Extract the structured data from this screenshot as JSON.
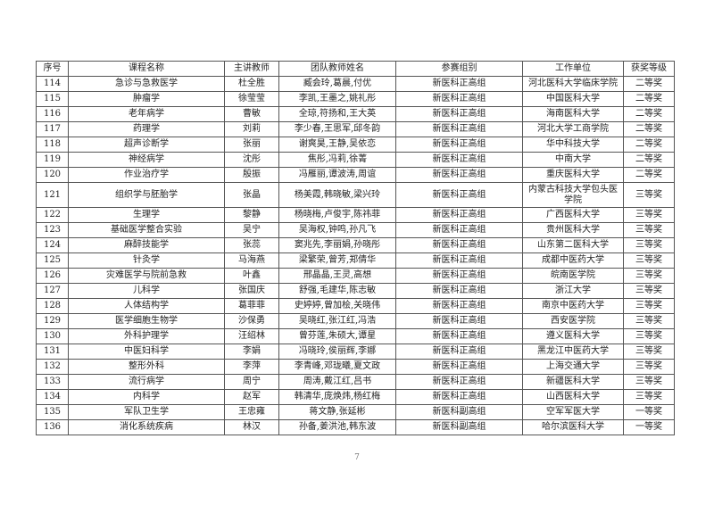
{
  "headers": [
    "序号",
    "课程名称",
    "主讲教师",
    "团队教师姓名",
    "参赛组别",
    "工作单位",
    "获奖等级"
  ],
  "rows": [
    [
      "114",
      "急诊与急救医学",
      "杜全胜",
      "臧会玲,葛晨,付优",
      "新医科正高组",
      "河北医科大学临床学院",
      "二等奖"
    ],
    [
      "115",
      "肿瘤学",
      "徐莹莹",
      "李凯,王墨之,姚礼彤",
      "新医科正高组",
      "中国医科大学",
      "二等奖"
    ],
    [
      "116",
      "老年病学",
      "曹敏",
      "全琼,符扬和,王大英",
      "新医科正高组",
      "海南医科大学",
      "二等奖"
    ],
    [
      "117",
      "药理学",
      "刘莉",
      "李少春,王思军,邱冬韵",
      "新医科正高组",
      "河北大学工商学院",
      "二等奖"
    ],
    [
      "118",
      "超声诊断学",
      "张丽",
      "谢爽昊,王静,吴依恋",
      "新医科正高组",
      "华中科技大学",
      "二等奖"
    ],
    [
      "119",
      "神经病学",
      "沈彤",
      "焦彤,冯莉,徐菁",
      "新医科正高组",
      "中南大学",
      "二等奖"
    ],
    [
      "120",
      "作业治疗学",
      "殷振",
      "冯雁丽,谭波涛,周谊",
      "新医科正高组",
      "重庆医科大学",
      "二等奖"
    ],
    [
      "121",
      "组织学与胚胎学",
      "张晶",
      "杨美霞,韩晓敏,梁兴玲",
      "新医科正高组",
      "内蒙古科技大学包头医学院",
      "三等奖"
    ],
    [
      "122",
      "生理学",
      "黎静",
      "杨晓梅,卢俊宇,陈祎菲",
      "新医科正高组",
      "广西医科大学",
      "三等奖"
    ],
    [
      "123",
      "基础医学整合实验",
      "吴宁",
      "吴海权,钟鸣,孙凡飞",
      "新医科正高组",
      "贵州医科大学",
      "三等奖"
    ],
    [
      "124",
      "麻醉技能学",
      "张蕊",
      "窦兆先,李丽娟,孙晓彤",
      "新医科正高组",
      "山东第二医科大学",
      "三等奖"
    ],
    [
      "125",
      "针灸学",
      "马海燕",
      "梁繁荣,曾芳,郑倩华",
      "新医科正高组",
      "成都中医药大学",
      "三等奖"
    ],
    [
      "126",
      "灾难医学与院前急救",
      "叶鑫",
      "邢晶晶,王灵,高想",
      "新医科正高组",
      "皖南医学院",
      "三等奖"
    ],
    [
      "127",
      "儿科学",
      "张国庆",
      "舒强,毛建华,陈志敏",
      "新医科正高组",
      "浙江大学",
      "三等奖"
    ],
    [
      "128",
      "人体结构学",
      "葛菲菲",
      "史婷婷,曾加桧,关晓伟",
      "新医科正高组",
      "南京中医药大学",
      "三等奖"
    ],
    [
      "129",
      "医学细胞生物学",
      "沙保勇",
      "吴晓红,张江红,冯浩",
      "新医科正高组",
      "西安医学院",
      "三等奖"
    ],
    [
      "130",
      "外科护理学",
      "汪绍林",
      "曾芬莲,朱硕大,谭星",
      "新医科正高组",
      "遵义医科大学",
      "三等奖"
    ],
    [
      "131",
      "中医妇科学",
      "李娟",
      "冯晓玲,侯丽辉,李娜",
      "新医科正高组",
      "黑龙江中医药大学",
      "三等奖"
    ],
    [
      "132",
      "整形外科",
      "李萍",
      "李青峰,邓珑曦,夏文政",
      "新医科正高组",
      "上海交通大学",
      "三等奖"
    ],
    [
      "133",
      "流行病学",
      "周宁",
      "周涛,戴江红,吕书",
      "新医科正高组",
      "新疆医科大学",
      "三等奖"
    ],
    [
      "134",
      "内科学",
      "赵军",
      "韩清华,庞焕炜,杨红梅",
      "新医科正高组",
      "山西医科大学",
      "三等奖"
    ],
    [
      "135",
      "军队卫生学",
      "王忠雍",
      "蒋文静,张延彬",
      "新医科副高组",
      "空军军医大学",
      "一等奖"
    ],
    [
      "136",
      "消化系统疾病",
      "林汉",
      "孙备,姜洪池,韩东波",
      "新医科副高组",
      "哈尔滨医科大学",
      "一等奖"
    ]
  ],
  "page_number": "7"
}
